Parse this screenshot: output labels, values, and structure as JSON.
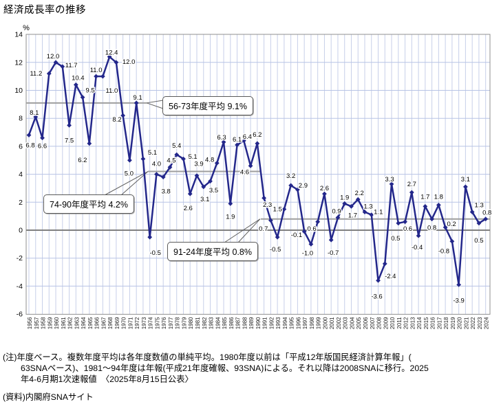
{
  "title": "経済成長率の推移",
  "chart_data": {
    "type": "line",
    "title": "経済成長率の推移",
    "ylabel": "%",
    "ylim": [
      -6,
      14
    ],
    "ytick_step": 2,
    "grid": true,
    "line_color": "#23278b",
    "marker": "diamond",
    "avg_line_color": "#9e9e9e",
    "zero_line_color": "#7f7f7f",
    "years": [
      1956,
      1957,
      1958,
      1959,
      1960,
      1961,
      1962,
      1963,
      1964,
      1965,
      1966,
      1967,
      1968,
      1969,
      1970,
      1971,
      1972,
      1973,
      1974,
      1975,
      1976,
      1977,
      1978,
      1979,
      1980,
      1981,
      1982,
      1983,
      1984,
      1985,
      1986,
      1987,
      1988,
      1989,
      1990,
      1991,
      1992,
      1993,
      1994,
      1995,
      1996,
      1997,
      1998,
      1999,
      2000,
      2001,
      2002,
      2003,
      2004,
      2005,
      2006,
      2007,
      2008,
      2009,
      2010,
      2011,
      2012,
      2013,
      2014,
      2015,
      2016,
      2017,
      2018,
      2019,
      2020,
      2021,
      2022,
      2023,
      2024
    ],
    "values": [
      6.8,
      8.1,
      6.6,
      11.2,
      12.0,
      11.7,
      7.5,
      10.4,
      9.5,
      6.2,
      11.0,
      11.0,
      12.4,
      12.0,
      8.2,
      5.0,
      9.1,
      5.1,
      -0.5,
      4.0,
      3.8,
      4.5,
      5.4,
      5.1,
      2.6,
      3.9,
      3.1,
      3.5,
      4.8,
      6.3,
      1.9,
      6.1,
      6.4,
      4.6,
      6.2,
      2.3,
      0.7,
      -0.5,
      1.5,
      3.2,
      2.9,
      -0.1,
      -1.0,
      0.6,
      2.6,
      -0.7,
      0.9,
      1.9,
      1.7,
      2.2,
      1.3,
      1.1,
      -3.6,
      -2.4,
      3.3,
      0.5,
      0.6,
      2.7,
      -0.4,
      1.7,
      0.8,
      1.8,
      0.2,
      -0.8,
      -3.9,
      3.1,
      1.3,
      0.5,
      0.8
    ],
    "averages": [
      {
        "label": "56-73年度平均 9.1%",
        "from": 1956,
        "to": 1973,
        "value": 9.1
      },
      {
        "label": "74-90年度平均 4.2%",
        "from": 1974,
        "to": 1990,
        "value": 4.2
      },
      {
        "label": "91-24年度平均 0.8%",
        "from": 1991,
        "to": 2024,
        "value": 0.8
      }
    ]
  },
  "notes": {
    "lines": [
      "(注)年度ベース。複数年度平均は各年度数値の単純平均。1980年度以前は「平成12年版国民経済計算年報」(",
      "63SNAベース)、1981～94年度は年報(平成21年度確報、93SNA)による。それ以降は2008SNAに移行。2025",
      "年4-6月期1次速報値　〈2025年8月15日公表〉",
      "(資料)内閣府SNAサイト"
    ]
  }
}
